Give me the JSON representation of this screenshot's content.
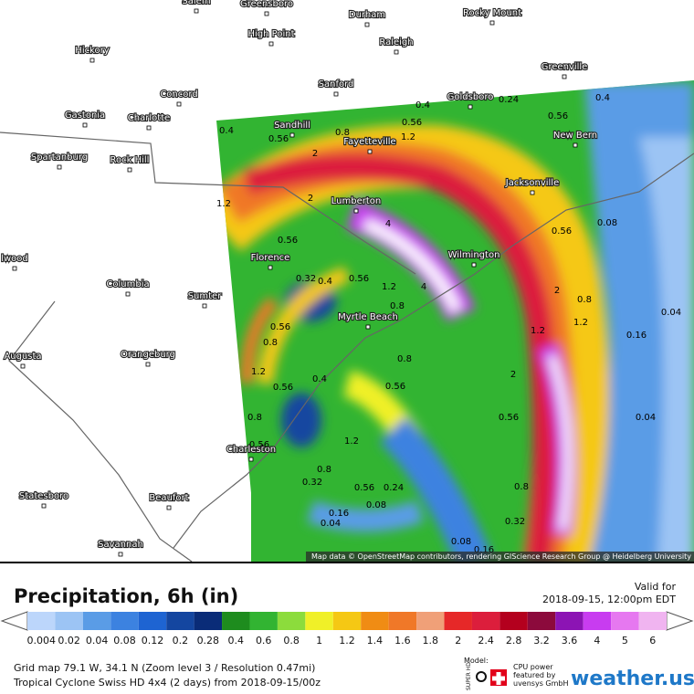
{
  "map": {
    "cities": [
      "Salem",
      "Greensboro",
      "Durham",
      "Rocky Mount",
      "High Point",
      "Raleigh",
      "Hickory",
      "Greenville",
      "Sanford",
      "Goldsboro",
      "Concord",
      "Gastonia",
      "Charlotte",
      "Sandhill",
      "Fayetteville",
      "New Bern",
      "Spartanburg",
      "Rock Hill",
      "Jacksonville",
      "Lumberton",
      "Wilmington",
      "lwood",
      "Florence",
      "Columbia",
      "Sumter",
      "Myrtle Beach",
      "Augusta",
      "Orangeburg",
      "Charleston",
      "Statesboro",
      "Beaufort",
      "Savannah"
    ],
    "contour_labels": [
      "0.4",
      "0.56",
      "0.8",
      "0.56",
      "1.2",
      "2",
      "0.4",
      "0.24",
      "0.4",
      "0.56",
      "1.2",
      "2",
      "4",
      "0.56",
      "0.32",
      "0.4",
      "0.56",
      "1.2",
      "0.8",
      "4",
      "0.56",
      "0.8",
      "1.2",
      "0.56",
      "0.4",
      "0.56",
      "0.8",
      "0.8",
      "0.56",
      "1.2",
      "0.8",
      "0.32",
      "0.56",
      "0.24",
      "0.08",
      "0.16",
      "0.04",
      "2",
      "1.2",
      "0.8",
      "0.04",
      "0.16",
      "0.04",
      "0.56",
      "0.08",
      "1.2",
      "2",
      "0.56",
      "0.8",
      "0.32",
      "0.08",
      "0.16"
    ],
    "attribution": "Map data © OpenStreetMap contributors, rendering GIScience Research Group @ Heidelberg University"
  },
  "header": {
    "title": "Precipitation, 6h (in)",
    "valid_label": "Valid for",
    "valid_time": "2018-09-15, 12:00pm EDT"
  },
  "legend": {
    "items": [
      {
        "label": "0.004",
        "color": "#bcd6fb"
      },
      {
        "label": "0.02",
        "color": "#9cc4f4"
      },
      {
        "label": "0.04",
        "color": "#5a9ce6"
      },
      {
        "label": "0.08",
        "color": "#3c82e0"
      },
      {
        "label": "0.12",
        "color": "#1e64d2"
      },
      {
        "label": "0.2",
        "color": "#1446a0"
      },
      {
        "label": "0.28",
        "color": "#0a2c78"
      },
      {
        "label": "0.4",
        "color": "#1e8c1e"
      },
      {
        "label": "0.6",
        "color": "#32b432"
      },
      {
        "label": "0.8",
        "color": "#8cdc3c"
      },
      {
        "label": "1",
        "color": "#f0f028"
      },
      {
        "label": "1.2",
        "color": "#f5c814"
      },
      {
        "label": "1.4",
        "color": "#f08c14"
      },
      {
        "label": "1.6",
        "color": "#f07828"
      },
      {
        "label": "1.8",
        "color": "#f0a078"
      },
      {
        "label": "2",
        "color": "#e62828"
      },
      {
        "label": "2.4",
        "color": "#dc1e3c"
      },
      {
        "label": "2.8",
        "color": "#b4001e"
      },
      {
        "label": "3.2",
        "color": "#8c0a3c"
      },
      {
        "label": "3.6",
        "color": "#8c14b4"
      },
      {
        "label": "4",
        "color": "#c83cf0"
      },
      {
        "label": "5",
        "color": "#e678f0"
      },
      {
        "label": "6",
        "color": "#f0b4f0"
      }
    ]
  },
  "footer": {
    "line1": "Grid map 79.1 W, 34.1 N (Zoom level 3 / Resolution 0.47mi)",
    "line2": "Tropical Cyclone Swiss HD 4x4 (2 days) from 2018-09-15/00z",
    "model_label": "Model:",
    "model_name": "SUPER HD",
    "cpu_text": [
      "CPU power",
      "featured by",
      "uvensys GmbH"
    ],
    "brand": "weather.us"
  }
}
